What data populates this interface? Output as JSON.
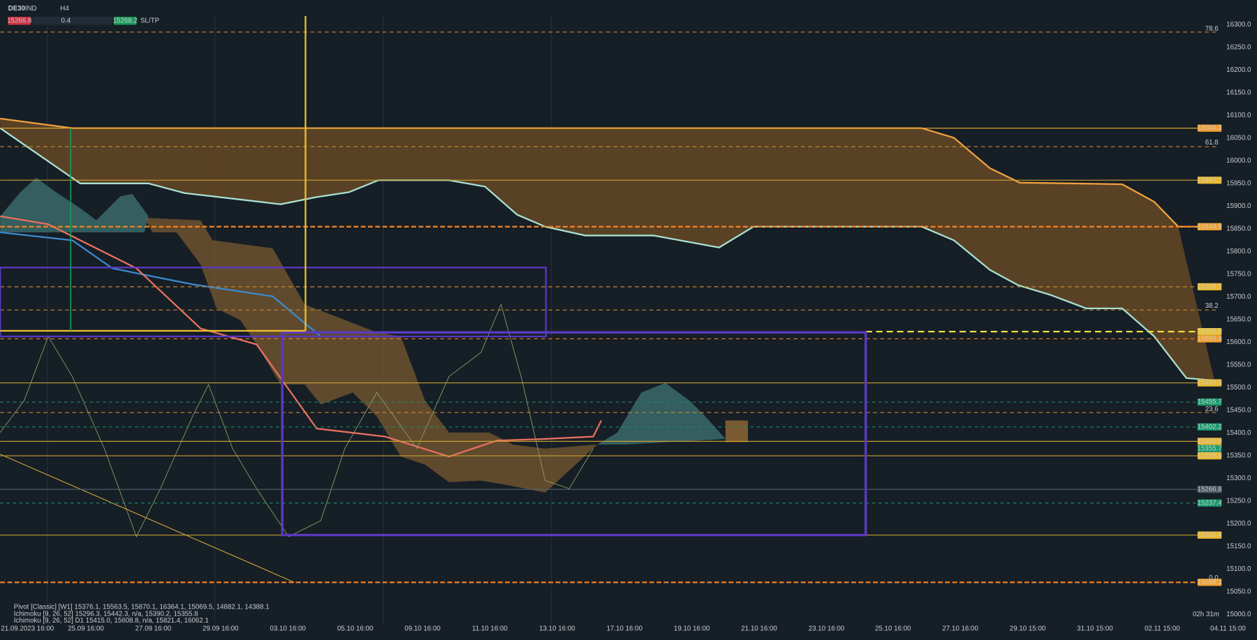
{
  "toolbar": {
    "symbol": "DE30",
    "symbol_tag": "IND",
    "timeframe": "H4",
    "sell_price": "15266.8",
    "quantity": "0.4",
    "buy_price": "15268.2",
    "sl_tp": "SL/TP"
  },
  "price_axis": [
    "16300.0",
    "16250.0",
    "16200.0",
    "16150.0",
    "16100.0",
    "16050.0",
    "16000.0",
    "15950.0",
    "15900.0",
    "15850.0",
    "15800.0",
    "15750.0",
    "15700.0",
    "15650.0",
    "15600.0",
    "15550.0",
    "15500.0",
    "15450.0",
    "15400.0",
    "15350.0",
    "15300.0",
    "15250.0",
    "15200.0",
    "15150.0",
    "15100.0",
    "15050.0",
    "15000.0"
  ],
  "time_axis": [
    "21.09.2023 16:00",
    "25.09 16:00",
    "27.09 16:00",
    "29.09 16:00",
    "03.10 16:00",
    "05.10 16:00",
    "09.10 16:00",
    "11.10 16:00",
    "13.10 16:00",
    "17.10 16:00",
    "19.10 16:00",
    "21.10 16:00",
    "23.10 16:00",
    "25.10 16:00",
    "27.10 16:00",
    "29.10 15:00",
    "31.10 15:00",
    "02.11 15:00",
    "04.11 15:00"
  ],
  "price_tags": [
    {
      "label": "16064.2",
      "color": "#f0a030"
    },
    {
      "label": "15947.7",
      "color": "#e8b830"
    },
    {
      "label": "15844.9",
      "color": "#f0a030"
    },
    {
      "label": "15708.7",
      "color": "#e8b830"
    },
    {
      "label": "15609.0",
      "color": "#e8c030"
    },
    {
      "label": "15594.4",
      "color": "#f0a030"
    },
    {
      "label": "15496.3",
      "color": "#e8b830"
    },
    {
      "label": "15455.7",
      "color": "#1a9a6a"
    },
    {
      "label": "15402.2",
      "color": "#1a9a6a"
    },
    {
      "label": "15369.9",
      "color": "#e8b830"
    },
    {
      "label": "15355.7",
      "color": "#1a9a6a"
    },
    {
      "label": "15339.6",
      "color": "#e8b830"
    },
    {
      "label": "15266.8",
      "color": "#4a5560"
    },
    {
      "label": "15237.4",
      "color": "#1a9a6a"
    },
    {
      "label": "15166.4",
      "color": "#e8b830"
    },
    {
      "label": "15068.1",
      "color": "#f0a030"
    }
  ],
  "fib_levels": [
    "78.6",
    "61.8",
    "38.2",
    "23.6",
    "0.0"
  ],
  "indicators": [
    "Pivot [Classic] [W1] 15376.1, 15563.5, 15870.1, 16364.1, 15069.5, 14882.1, 14388.1",
    "Ichimoku [9, 26, 52] 15296.3, 15442.3, n/a, 15390.2, 15355.8",
    "Ichimoku [9, 26, 52] D1 15415.0, 15608.8, n/a, 15821.4, 16062.1"
  ],
  "countdown": "02h 31m"
}
